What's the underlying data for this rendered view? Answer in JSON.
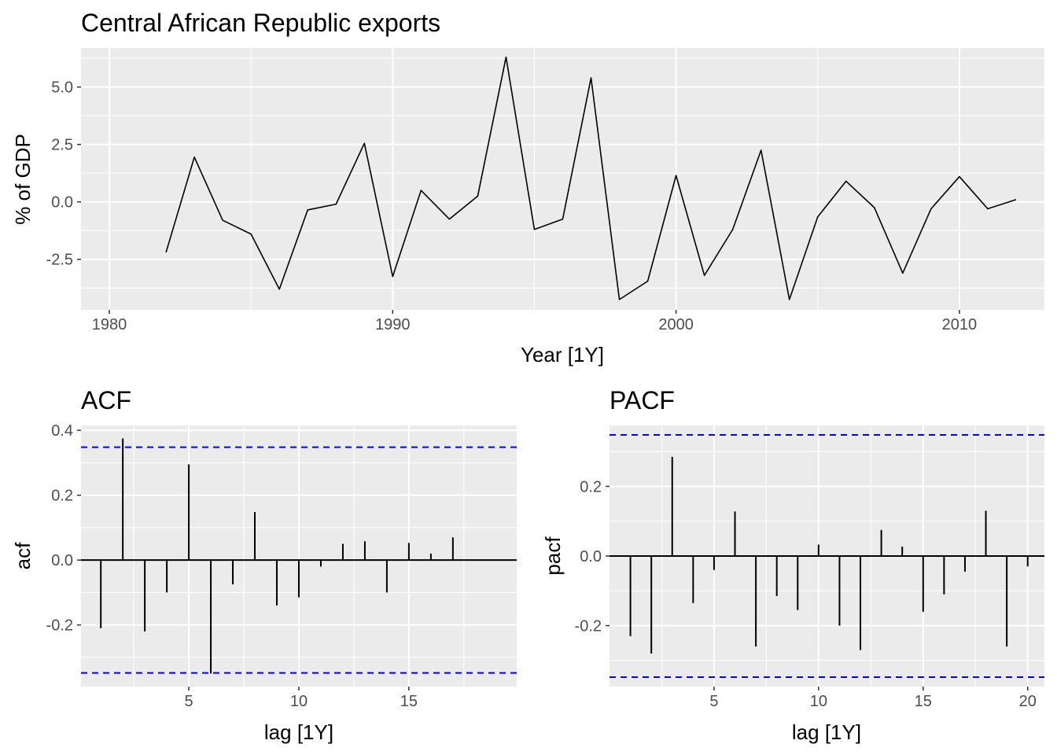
{
  "chart_data": [
    {
      "type": "line",
      "title": "Central African Republic exports",
      "xlabel": "Year [1Y]",
      "ylabel": "% of GDP",
      "xlim": [
        1979,
        2013
      ],
      "ylim": [
        -4.7,
        6.7
      ],
      "xticks": [
        1980,
        1990,
        2000,
        2010
      ],
      "xtick_labels": [
        "1980",
        "1990",
        "2000",
        "2010"
      ],
      "yticks": [
        -2.5,
        0,
        2.5,
        5
      ],
      "ytick_labels": [
        "-2.5",
        "0.0",
        "2.5",
        "5.0"
      ],
      "grid": true,
      "series_color": "#000000",
      "x": [
        1982,
        1983,
        1984,
        1985,
        1986,
        1987,
        1988,
        1989,
        1990,
        1991,
        1992,
        1993,
        1994,
        1995,
        1996,
        1997,
        1998,
        1999,
        2000,
        2001,
        2002,
        2003,
        2004,
        2005,
        2006,
        2007,
        2008,
        2009,
        2010,
        2011,
        2012
      ],
      "y": [
        -2.2,
        1.95,
        -0.8,
        -1.4,
        -3.8,
        -0.35,
        -0.1,
        2.55,
        -3.25,
        0.5,
        -0.75,
        0.25,
        6.3,
        -1.2,
        -0.75,
        5.4,
        -4.25,
        -3.45,
        1.15,
        -3.2,
        -1.2,
        2.25,
        -4.25,
        -0.65,
        0.9,
        -0.25,
        -3.1,
        -0.3,
        1.1,
        -0.3,
        0.1
      ]
    },
    {
      "type": "bar",
      "title": "ACF",
      "xlabel": "lag [1Y]",
      "ylabel": "acf",
      "xlim": [
        0.1,
        19.9
      ],
      "ylim": [
        -0.39,
        0.415
      ],
      "xticks": [
        5,
        10,
        15
      ],
      "xtick_labels": [
        "5",
        "10",
        "15"
      ],
      "yticks": [
        -0.2,
        0,
        0.2,
        0.4
      ],
      "ytick_labels": [
        "-0.2",
        "0.0",
        "0.2",
        "0.4"
      ],
      "confidence_bound": 0.348,
      "bound_color": "#0000ff",
      "grid": true,
      "lags": [
        1,
        2,
        3,
        4,
        5,
        6,
        7,
        8,
        9,
        10,
        11,
        12,
        13,
        14,
        15,
        16,
        17
      ],
      "values": [
        -0.21,
        0.375,
        -0.22,
        -0.1,
        0.295,
        -0.35,
        -0.075,
        0.148,
        -0.14,
        -0.115,
        -0.02,
        0.05,
        0.058,
        -0.1,
        0.053,
        0.02,
        0.07
      ]
    },
    {
      "type": "bar",
      "title": "PACF",
      "xlabel": "lag [1Y]",
      "ylabel": "pacf",
      "xlim": [
        0.0,
        20.8
      ],
      "ylim": [
        -0.375,
        0.375
      ],
      "xticks": [
        5,
        10,
        15,
        20
      ],
      "xtick_labels": [
        "5",
        "10",
        "15",
        "20"
      ],
      "yticks": [
        -0.2,
        0,
        0.2
      ],
      "ytick_labels": [
        "-0.2",
        "0.0",
        "0.2"
      ],
      "confidence_bound": 0.348,
      "bound_color": "#0000ff",
      "grid": true,
      "lags": [
        1,
        2,
        3,
        4,
        5,
        6,
        7,
        8,
        9,
        10,
        11,
        12,
        13,
        14,
        15,
        16,
        17,
        18,
        19,
        20
      ],
      "values": [
        -0.23,
        -0.28,
        0.285,
        -0.135,
        -0.04,
        0.128,
        -0.26,
        -0.115,
        -0.155,
        0.033,
        -0.2,
        -0.27,
        0.075,
        0.027,
        -0.16,
        -0.11,
        -0.045,
        0.13,
        -0.26,
        -0.03
      ]
    }
  ]
}
